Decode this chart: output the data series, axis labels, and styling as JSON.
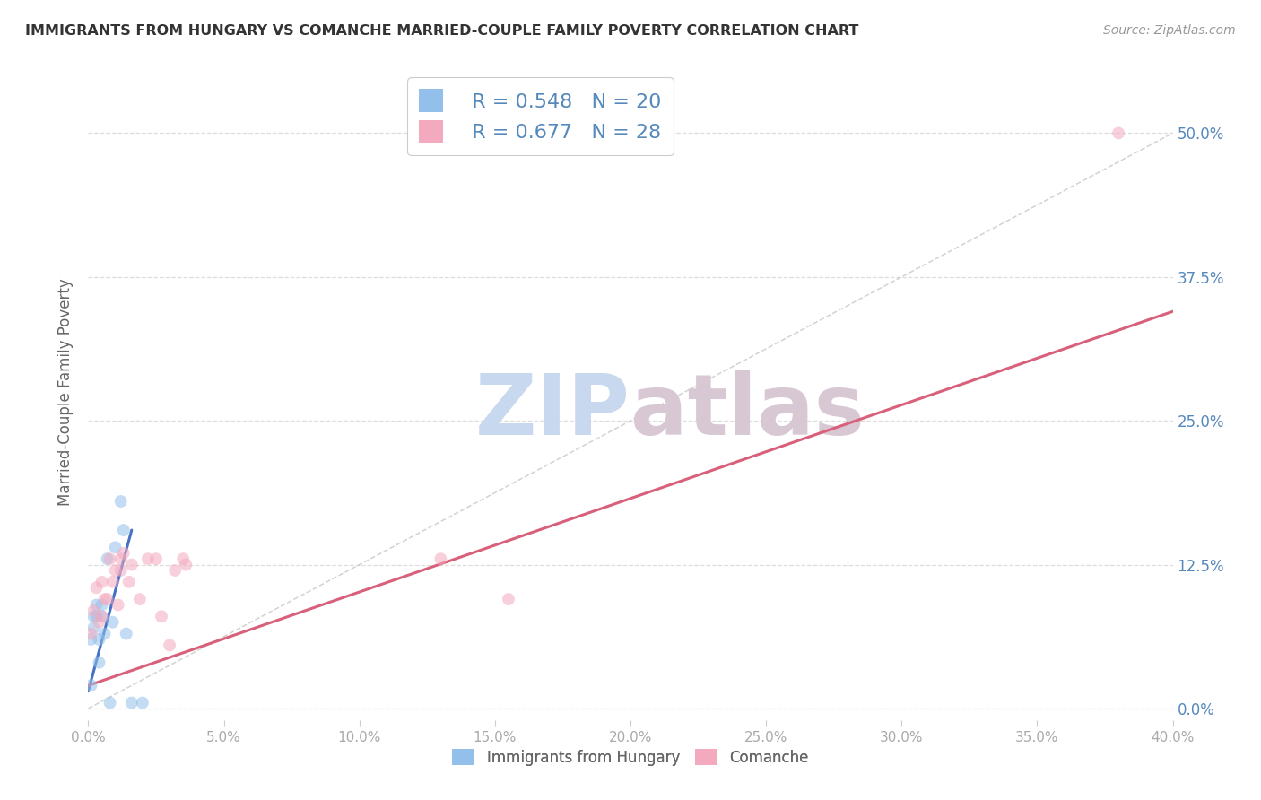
{
  "title": "IMMIGRANTS FROM HUNGARY VS COMANCHE MARRIED-COUPLE FAMILY POVERTY CORRELATION CHART",
  "source": "Source: ZipAtlas.com",
  "ylabel": "Married-Couple Family Poverty",
  "ylabel_ticks": [
    "0.0%",
    "12.5%",
    "25.0%",
    "37.5%",
    "50.0%"
  ],
  "xlim": [
    0.0,
    0.4
  ],
  "ylim": [
    -0.01,
    0.56
  ],
  "legend_blue_R": "R = 0.548",
  "legend_blue_N": "N = 20",
  "legend_pink_R": "R = 0.677",
  "legend_pink_N": "N = 28",
  "blue_scatter_x": [
    0.001,
    0.001,
    0.002,
    0.002,
    0.003,
    0.003,
    0.004,
    0.004,
    0.005,
    0.005,
    0.006,
    0.007,
    0.008,
    0.009,
    0.01,
    0.012,
    0.013,
    0.014,
    0.016,
    0.02
  ],
  "blue_scatter_y": [
    0.02,
    0.06,
    0.07,
    0.08,
    0.08,
    0.09,
    0.06,
    0.04,
    0.08,
    0.09,
    0.065,
    0.13,
    0.005,
    0.075,
    0.14,
    0.18,
    0.155,
    0.065,
    0.005,
    0.005
  ],
  "pink_scatter_x": [
    0.001,
    0.002,
    0.003,
    0.004,
    0.005,
    0.005,
    0.006,
    0.007,
    0.008,
    0.009,
    0.01,
    0.011,
    0.012,
    0.012,
    0.013,
    0.015,
    0.016,
    0.019,
    0.022,
    0.025,
    0.027,
    0.03,
    0.032,
    0.035,
    0.036,
    0.13,
    0.155,
    0.38
  ],
  "pink_scatter_y": [
    0.065,
    0.085,
    0.105,
    0.075,
    0.11,
    0.08,
    0.095,
    0.095,
    0.13,
    0.11,
    0.12,
    0.09,
    0.13,
    0.12,
    0.135,
    0.11,
    0.125,
    0.095,
    0.13,
    0.13,
    0.08,
    0.055,
    0.12,
    0.13,
    0.125,
    0.13,
    0.095,
    0.5
  ],
  "blue_line_x": [
    0.0,
    0.016
  ],
  "blue_line_y": [
    0.015,
    0.155
  ],
  "pink_line_x": [
    0.0,
    0.4
  ],
  "pink_line_y": [
    0.02,
    0.345
  ],
  "diag_line_x": [
    0.0,
    0.4
  ],
  "diag_line_y": [
    0.0,
    0.5
  ],
  "blue_color": "#92C0EA",
  "pink_color": "#F4AABE",
  "blue_line_color": "#4472C4",
  "pink_line_color": "#D9607A",
  "diag_line_color": "#C0C0C0",
  "watermark_zip_color": "#C8D8EE",
  "watermark_atlas_color": "#D8C8D4",
  "grid_color": "#DDDDDD",
  "title_color": "#333333",
  "tick_color_right": "#5588BB",
  "tick_color_x": "#AAAAAA",
  "background_color": "#FFFFFF",
  "marker_size": 100,
  "marker_alpha": 0.55
}
